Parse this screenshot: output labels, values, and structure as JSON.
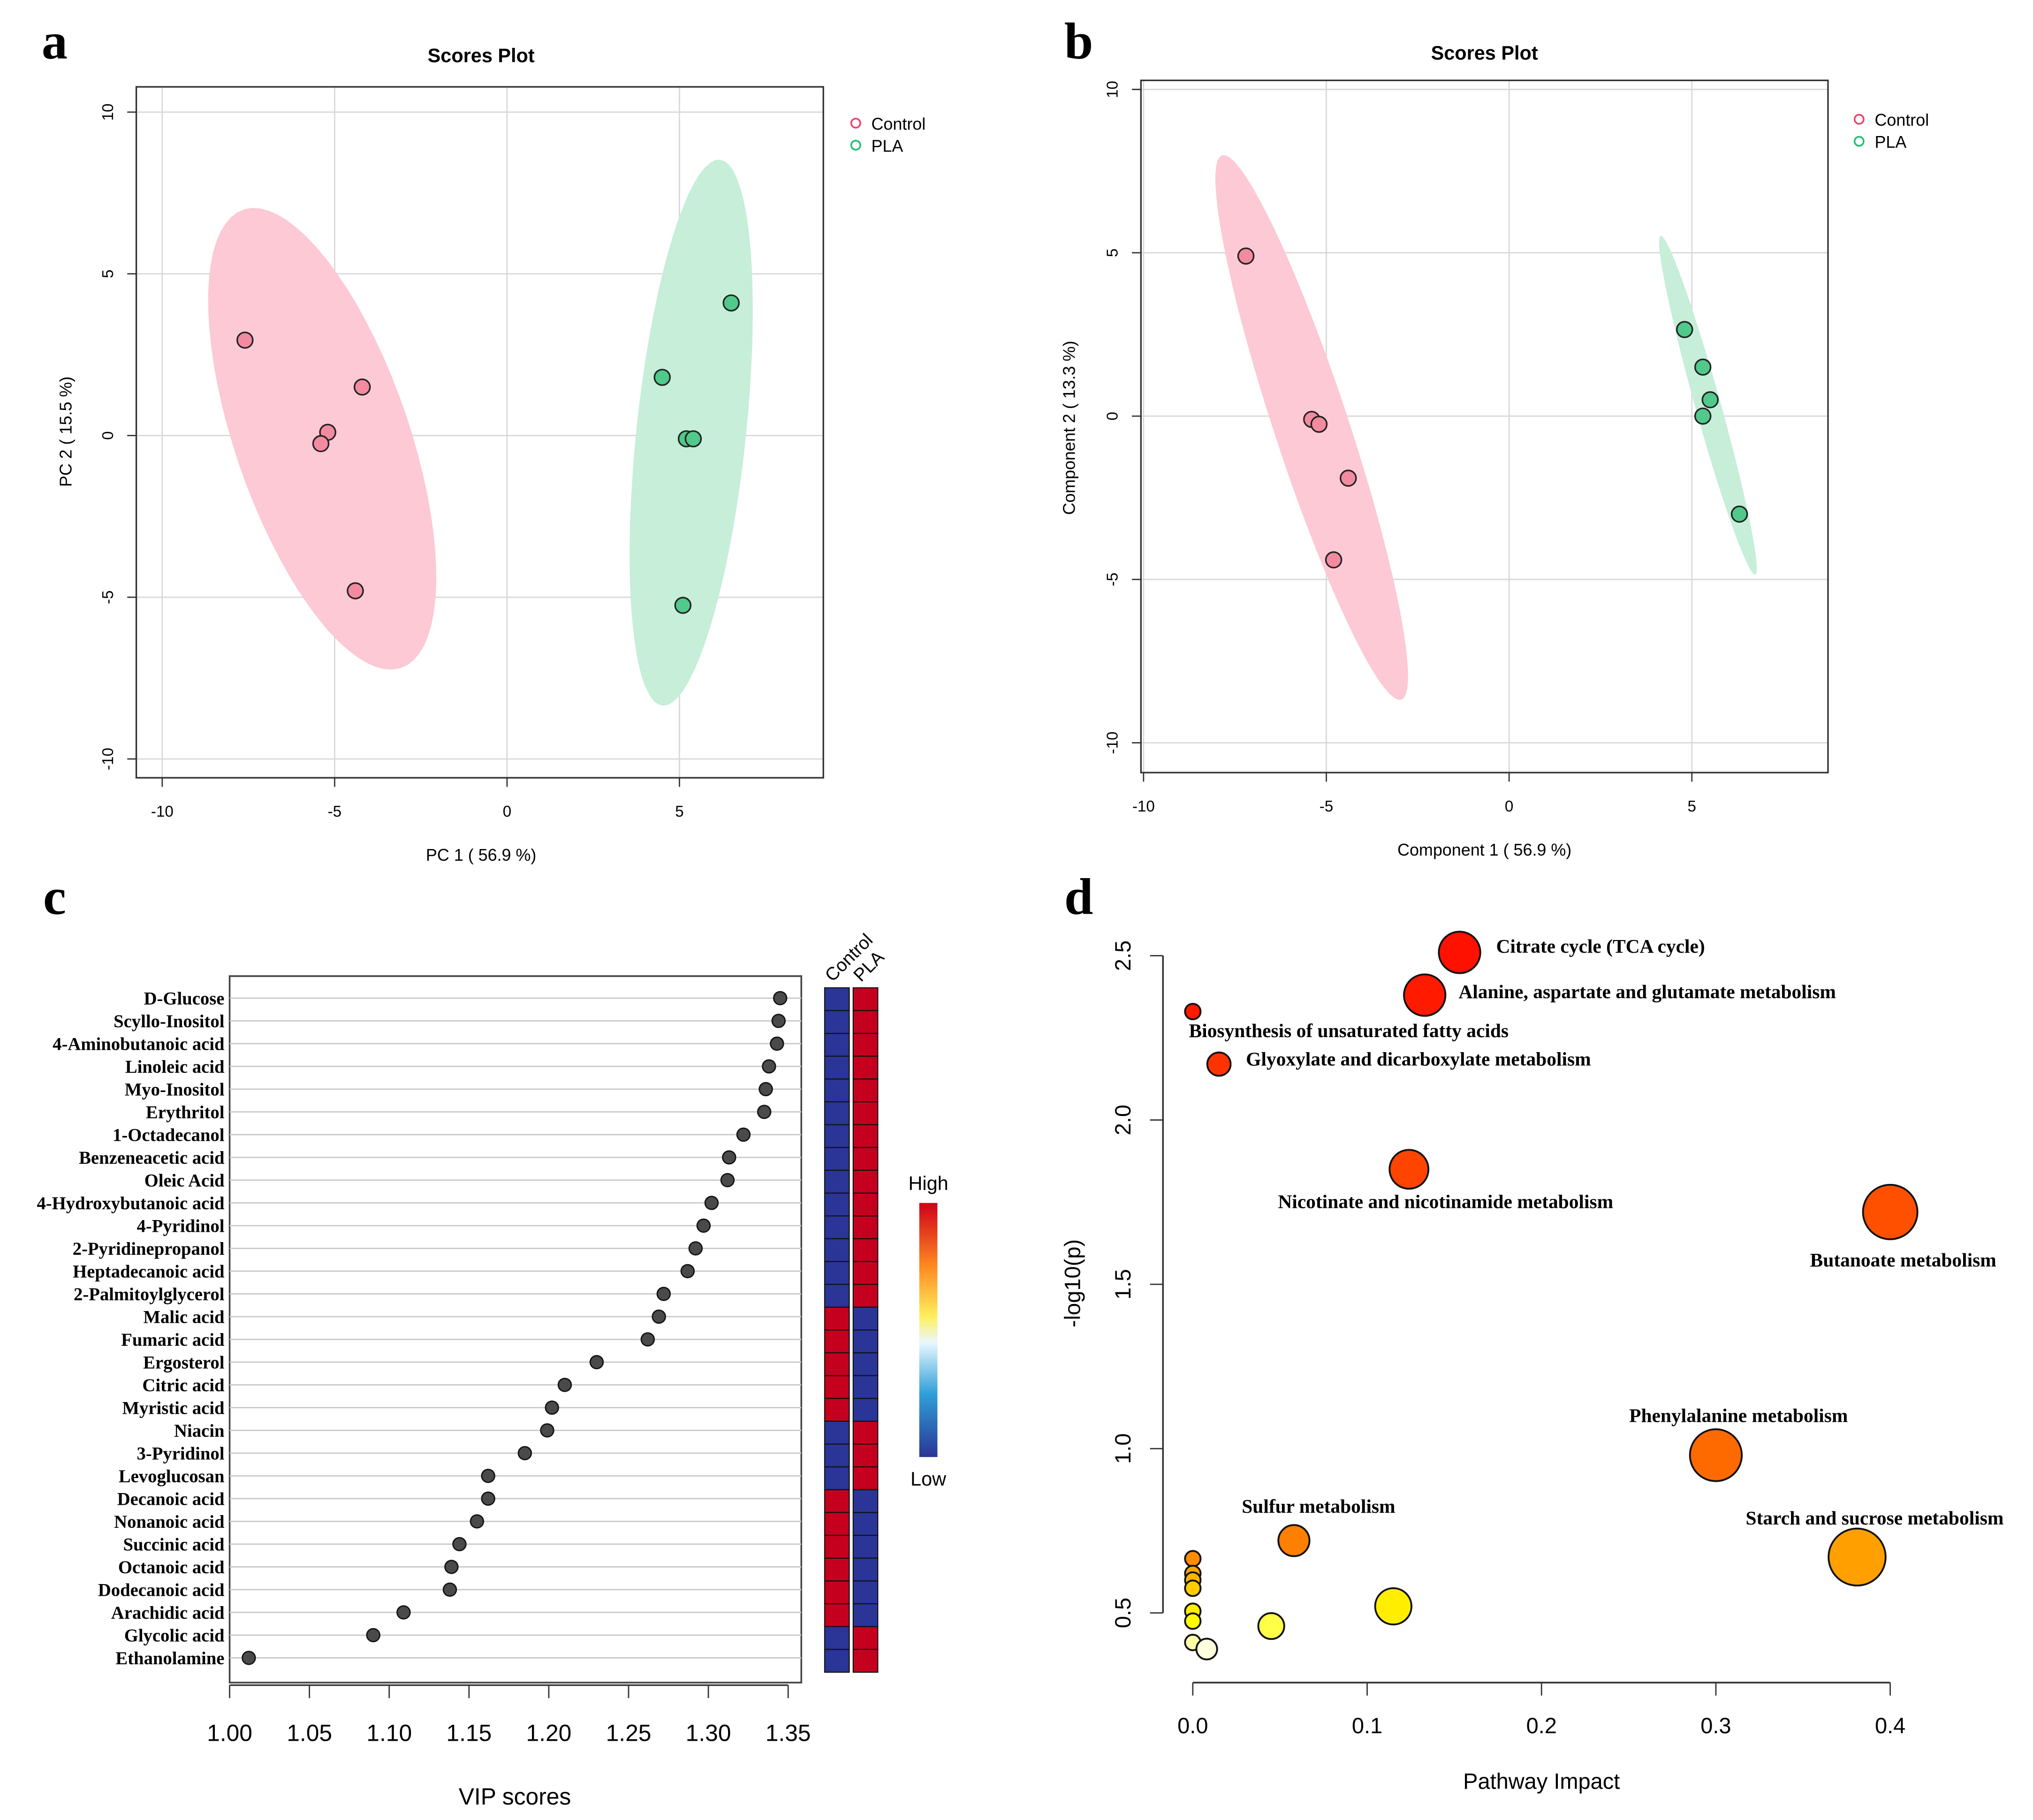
{
  "panel_letters": [
    "a",
    "b",
    "c",
    "d"
  ],
  "colors": {
    "control_point": "#f28aa0",
    "control_ellipse": "#fcc9d5",
    "control_legend": "#f0406a",
    "pla_point": "#50c98a",
    "pla_ellipse": "#c6eed9",
    "pla_legend": "#20c070",
    "heat_high": "#c4001e",
    "heat_low": "#2a3597",
    "vip_point": "#4a4a4a"
  },
  "chart_data": [
    {
      "type": "scatter",
      "title": "Scores Plot",
      "xlabel": "PC 1 ( 56.9 %)",
      "ylabel": "PC 2 ( 15.5 %)",
      "x_ticks": [
        -10,
        -5,
        0,
        5
      ],
      "y_ticks": [
        -10,
        -5,
        0,
        5,
        10
      ],
      "grid": true,
      "legend_position": "top-right",
      "series": [
        {
          "name": "Control",
          "points": [
            [
              -7.6,
              2.95
            ],
            [
              -4.2,
              1.5
            ],
            [
              -5.2,
              0.1
            ],
            [
              -5.4,
              -0.25
            ],
            [
              -4.4,
              -4.8
            ]
          ]
        },
        {
          "name": "PLA",
          "points": [
            [
              6.5,
              4.1
            ],
            [
              4.5,
              1.8
            ],
            [
              5.2,
              -0.1
            ],
            [
              5.4,
              -0.1
            ],
            [
              5.1,
              -5.25
            ]
          ]
        }
      ],
      "confidence_ellipse": 0.95
    },
    {
      "type": "scatter",
      "title": "Scores Plot",
      "xlabel": "Component 1 ( 56.9 %)",
      "ylabel": "Component 2 ( 13.3 %)",
      "x_ticks": [
        -10,
        -5,
        0,
        5
      ],
      "y_ticks": [
        -10,
        -5,
        0,
        5,
        10
      ],
      "grid": true,
      "legend_position": "top-right",
      "series": [
        {
          "name": "Control",
          "points": [
            [
              -7.2,
              4.9
            ],
            [
              -5.4,
              -0.1
            ],
            [
              -5.2,
              -0.25
            ],
            [
              -4.4,
              -1.9
            ],
            [
              -4.8,
              -4.4
            ]
          ]
        },
        {
          "name": "PLA",
          "points": [
            [
              4.8,
              2.65
            ],
            [
              5.3,
              1.5
            ],
            [
              5.5,
              0.5
            ],
            [
              5.3,
              0.0
            ],
            [
              6.3,
              -3.0
            ]
          ]
        }
      ],
      "confidence_ellipse": 0.95
    },
    {
      "type": "scatter",
      "xlabel": "VIP scores",
      "x_tick_labels": [
        "1.00",
        "1.05",
        "1.10",
        "1.15",
        "1.20",
        "1.25",
        "1.30",
        "1.35"
      ],
      "xlim": [
        1.0,
        1.35
      ],
      "heatmap_groups": [
        "Control",
        "PLA"
      ],
      "colorbar_labels": {
        "high": "High",
        "low": "Low"
      },
      "metabolites": [
        {
          "name": "D-Glucose",
          "vip": 1.345,
          "heat": [
            "low",
            "high"
          ]
        },
        {
          "name": "Scyllo-Inositol",
          "vip": 1.344,
          "heat": [
            "low",
            "high"
          ]
        },
        {
          "name": "4-Aminobutanoic acid",
          "vip": 1.343,
          "heat": [
            "low",
            "high"
          ]
        },
        {
          "name": "Linoleic acid",
          "vip": 1.338,
          "heat": [
            "low",
            "high"
          ]
        },
        {
          "name": "Myo-Inositol",
          "vip": 1.336,
          "heat": [
            "low",
            "high"
          ]
        },
        {
          "name": "Erythritol",
          "vip": 1.335,
          "heat": [
            "low",
            "high"
          ]
        },
        {
          "name": "1-Octadecanol",
          "vip": 1.322,
          "heat": [
            "low",
            "high"
          ]
        },
        {
          "name": "Benzeneacetic acid",
          "vip": 1.313,
          "heat": [
            "low",
            "high"
          ]
        },
        {
          "name": "Oleic Acid",
          "vip": 1.312,
          "heat": [
            "low",
            "high"
          ]
        },
        {
          "name": "4-Hydroxybutanoic acid",
          "vip": 1.302,
          "heat": [
            "low",
            "high"
          ]
        },
        {
          "name": "4-Pyridinol",
          "vip": 1.297,
          "heat": [
            "low",
            "high"
          ]
        },
        {
          "name": "2-Pyridinepropanol",
          "vip": 1.292,
          "heat": [
            "low",
            "high"
          ]
        },
        {
          "name": "Heptadecanoic acid",
          "vip": 1.287,
          "heat": [
            "low",
            "high"
          ]
        },
        {
          "name": "2-Palmitoylglycerol",
          "vip": 1.272,
          "heat": [
            "low",
            "high"
          ]
        },
        {
          "name": "Malic acid",
          "vip": 1.269,
          "heat": [
            "high",
            "low"
          ]
        },
        {
          "name": "Fumaric acid",
          "vip": 1.262,
          "heat": [
            "high",
            "low"
          ]
        },
        {
          "name": "Ergosterol",
          "vip": 1.23,
          "heat": [
            "high",
            "low"
          ]
        },
        {
          "name": "Citric acid",
          "vip": 1.21,
          "heat": [
            "high",
            "low"
          ]
        },
        {
          "name": "Myristic acid",
          "vip": 1.202,
          "heat": [
            "high",
            "low"
          ]
        },
        {
          "name": "Niacin",
          "vip": 1.199,
          "heat": [
            "low",
            "high"
          ]
        },
        {
          "name": "3-Pyridinol",
          "vip": 1.185,
          "heat": [
            "low",
            "high"
          ]
        },
        {
          "name": "Levoglucosan",
          "vip": 1.162,
          "heat": [
            "low",
            "high"
          ]
        },
        {
          "name": "Decanoic acid",
          "vip": 1.162,
          "heat": [
            "high",
            "low"
          ]
        },
        {
          "name": "Nonanoic acid",
          "vip": 1.155,
          "heat": [
            "high",
            "low"
          ]
        },
        {
          "name": "Succinic acid",
          "vip": 1.144,
          "heat": [
            "high",
            "low"
          ]
        },
        {
          "name": "Octanoic acid",
          "vip": 1.139,
          "heat": [
            "high",
            "low"
          ]
        },
        {
          "name": "Dodecanoic acid",
          "vip": 1.138,
          "heat": [
            "high",
            "low"
          ]
        },
        {
          "name": "Arachidic acid",
          "vip": 1.109,
          "heat": [
            "high",
            "low"
          ]
        },
        {
          "name": "Glycolic acid",
          "vip": 1.09,
          "heat": [
            "low",
            "high"
          ]
        },
        {
          "name": "Ethanolamine",
          "vip": 1.012,
          "heat": [
            "low",
            "high"
          ]
        }
      ]
    },
    {
      "type": "scatter",
      "xlabel": "Pathway Impact",
      "ylabel": "-log10(p)",
      "x_tick_labels": [
        "0.0",
        "0.1",
        "0.2",
        "0.3",
        "0.4"
      ],
      "x_ticks": [
        0.0,
        0.1,
        0.2,
        0.3,
        0.4
      ],
      "y_tick_labels": [
        "0.5",
        "1.0",
        "1.5",
        "2.0",
        "2.5"
      ],
      "y_ticks": [
        0.5,
        1.0,
        1.5,
        2.0,
        2.5
      ],
      "pathways": [
        {
          "label": "Citrate cycle (TCA cycle)",
          "impact": 0.153,
          "neglogp": 2.51,
          "size": 16,
          "color": "#ff1100"
        },
        {
          "label": "Alanine, aspartate and glutamate metabolism",
          "impact": 0.133,
          "neglogp": 2.38,
          "size": 16,
          "color": "#ff1a00"
        },
        {
          "label": "Biosynthesis of unsaturated fatty acids",
          "impact": 0.0,
          "neglogp": 2.33,
          "size": 6,
          "color": "#ff1a00"
        },
        {
          "label": "Glyoxylate and dicarboxylate metabolism",
          "impact": 0.015,
          "neglogp": 2.17,
          "size": 9,
          "color": "#ff3300"
        },
        {
          "label": "Nicotinate and nicotinamide metabolism",
          "impact": 0.124,
          "neglogp": 1.85,
          "size": 15,
          "color": "#ff4400"
        },
        {
          "label": "Butanoate metabolism",
          "impact": 0.4,
          "neglogp": 1.72,
          "size": 21,
          "color": "#ff5000"
        },
        {
          "label": "Phenylalanine metabolism",
          "impact": 0.3,
          "neglogp": 0.98,
          "size": 20,
          "color": "#ff6a00"
        },
        {
          "label": "Starch and sucrose metabolism",
          "impact": 0.381,
          "neglogp": 0.67,
          "size": 22,
          "color": "#ffa000"
        },
        {
          "label": "Sulfur metabolism",
          "impact": 0.058,
          "neglogp": 0.72,
          "size": 12,
          "color": "#ff8000"
        },
        {
          "impact": 0.0,
          "neglogp": 0.665,
          "size": 6,
          "color": "#ff8c00"
        },
        {
          "impact": 0.0,
          "neglogp": 0.62,
          "size": 6,
          "color": "#ffa500"
        },
        {
          "impact": 0.0,
          "neglogp": 0.6,
          "size": 6,
          "color": "#ffb400"
        },
        {
          "impact": 0.0,
          "neglogp": 0.575,
          "size": 6,
          "color": "#ffcc00"
        },
        {
          "impact": 0.0,
          "neglogp": 0.505,
          "size": 6,
          "color": "#ffee00"
        },
        {
          "impact": 0.0,
          "neglogp": 0.475,
          "size": 6,
          "color": "#ffff00"
        },
        {
          "impact": 0.0,
          "neglogp": 0.41,
          "size": 6,
          "color": "#ffffa8"
        },
        {
          "impact": 0.008,
          "neglogp": 0.39,
          "size": 8,
          "color": "#ffffe0"
        },
        {
          "impact": 0.045,
          "neglogp": 0.46,
          "size": 10,
          "color": "#ffff48"
        },
        {
          "impact": 0.115,
          "neglogp": 0.52,
          "size": 14,
          "color": "#ffee00"
        }
      ]
    }
  ]
}
